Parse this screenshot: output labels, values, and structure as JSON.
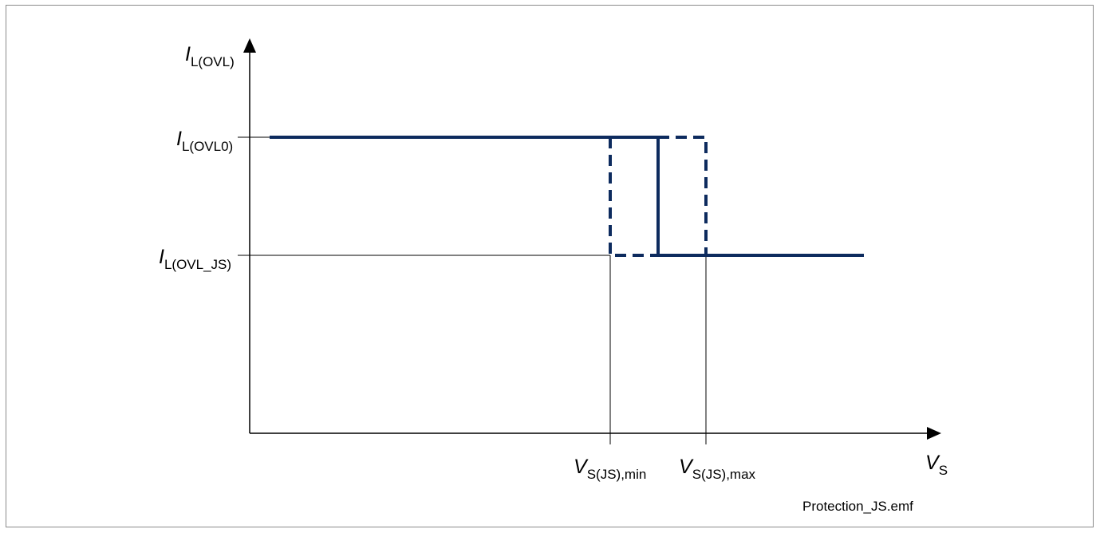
{
  "diagram": {
    "y_axis": {
      "main": "I",
      "sub": "L(OVL)"
    },
    "x_axis": {
      "main": "V",
      "sub": "S"
    },
    "y_level_high": {
      "main": "I",
      "sub": "L(OVL0)"
    },
    "y_level_low": {
      "main": "I",
      "sub": "L(OVL_JS)"
    },
    "x_mark_min": {
      "main": "V",
      "sub": "S(JS),min"
    },
    "x_mark_max": {
      "main": "V",
      "sub": "S(JS),max"
    },
    "filename": "Protection_JS.emf",
    "colors": {
      "curve": "#0d2b5e",
      "axis": "#000000",
      "frame": "#8a8a8a"
    }
  }
}
